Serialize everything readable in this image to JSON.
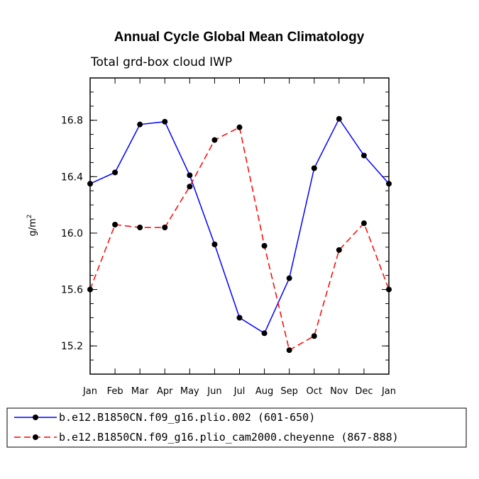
{
  "chart_data": {
    "type": "line",
    "title": "Annual Cycle Global Mean Climatology",
    "subtitle": "Total grd-box cloud IWP",
    "ylabel": "g/m",
    "ylabel_superscript": "2",
    "xlabel": "",
    "categories": [
      "Jan",
      "Feb",
      "Mar",
      "Apr",
      "May",
      "Jun",
      "Jul",
      "Aug",
      "Sep",
      "Oct",
      "Nov",
      "Dec",
      "Jan"
    ],
    "ylim": [
      15.0,
      17.1
    ],
    "yticks": [
      15.2,
      15.6,
      16.0,
      16.4,
      16.8
    ],
    "ytick_labels": [
      "15.2",
      "15.6",
      "16.0",
      "16.4",
      "16.8"
    ],
    "series": [
      {
        "name": "b.e12.B1850CN.f09_g16.plio.002 (601-650)",
        "color": "#0000ff",
        "dash": "solid",
        "values": [
          16.35,
          16.43,
          16.77,
          16.79,
          16.41,
          15.92,
          15.4,
          15.29,
          15.68,
          16.46,
          16.81,
          16.55,
          16.35
        ]
      },
      {
        "name": "b.e12.B1850CN.f09_g16.plio_cam2000.cheyenne (867-888)",
        "color": "#ff0000",
        "dash": "dashed",
        "values": [
          15.6,
          16.06,
          16.04,
          16.04,
          16.33,
          16.66,
          16.75,
          15.91,
          15.17,
          15.27,
          15.88,
          16.07,
          15.6
        ]
      }
    ]
  }
}
